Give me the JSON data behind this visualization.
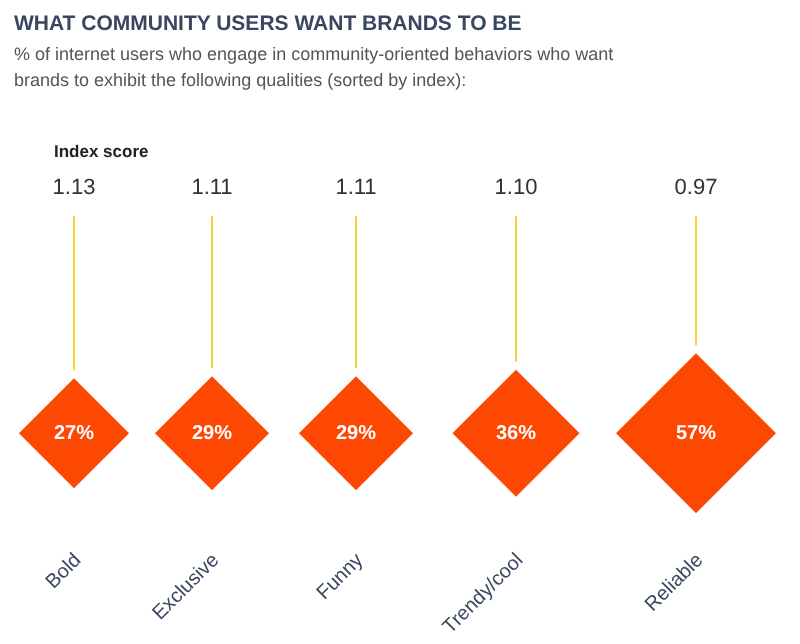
{
  "chart_data": {
    "type": "other",
    "title": "WHAT COMMUNITY USERS WANT BRANDS TO BE",
    "subtitle": "% of internet users who engage in community-oriented behaviors who want brands to exhibit the following qualities (sorted by index):",
    "categories": [
      "Bold",
      "Exclusive",
      "Funny",
      "Trendy/cool",
      "Reliable"
    ],
    "series": [
      {
        "name": "Index score",
        "values": [
          1.13,
          1.11,
          1.11,
          1.1,
          0.97
        ],
        "value_labels": [
          "1.13",
          "1.11",
          "1.11",
          "1.10",
          "0.97"
        ]
      },
      {
        "color": "#fc4803",
        "values": [
          27,
          29,
          29,
          36,
          57
        ],
        "value_labels": [
          "27%",
          "29%",
          "29%",
          "36%",
          "57%"
        ]
      }
    ],
    "legend": false
  }
}
